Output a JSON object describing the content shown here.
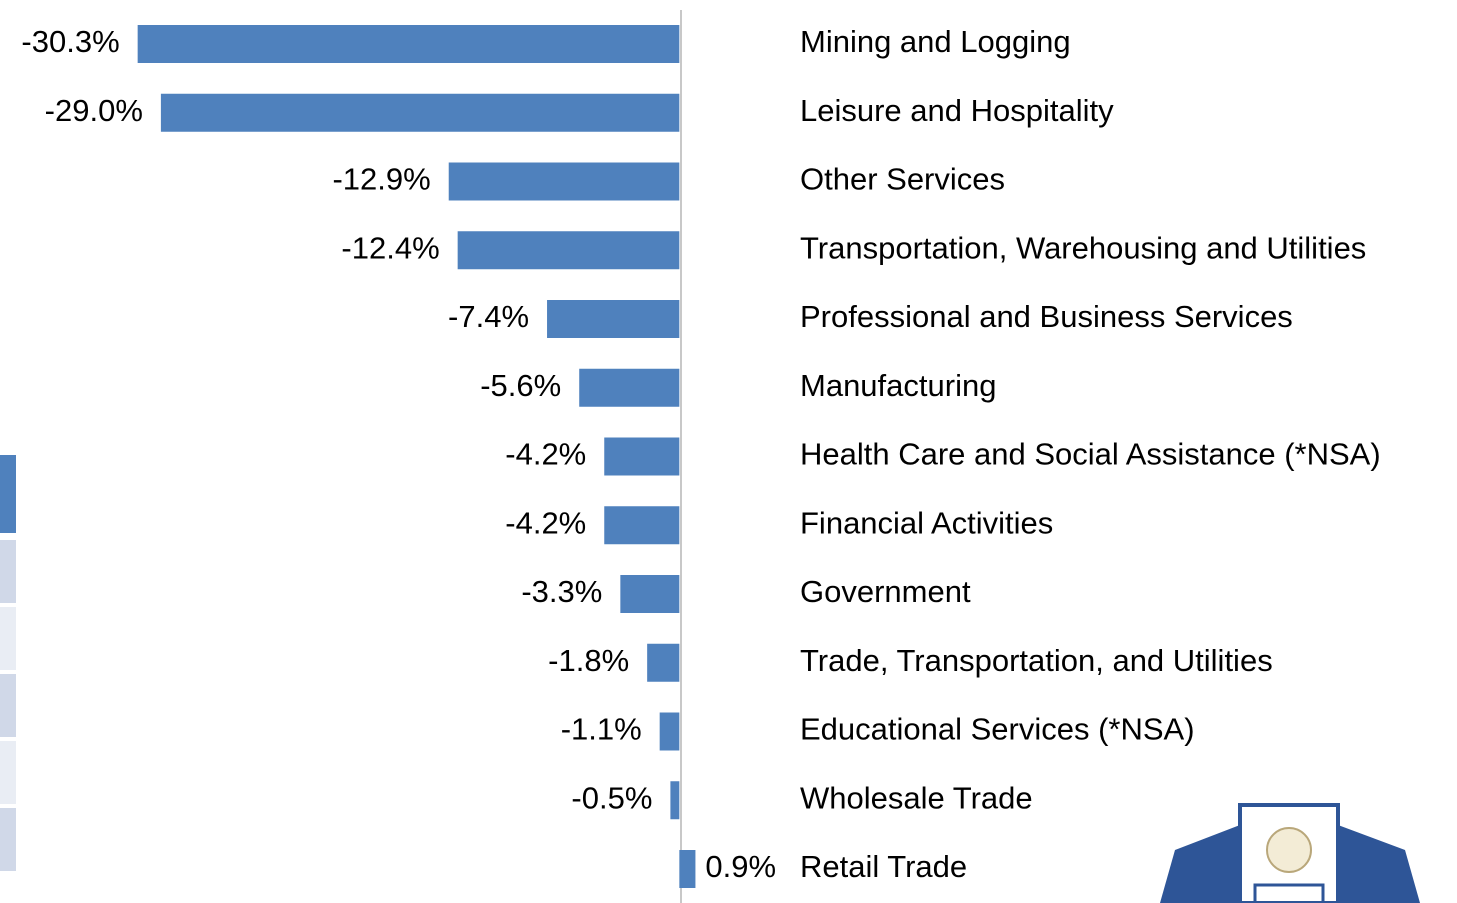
{
  "chart_data": {
    "type": "hbar",
    "categories": [
      "Mining and Logging",
      "Leisure and Hospitality",
      "Other Services",
      "Transportation, Warehousing and Utilities",
      "Professional and Business Services",
      "Manufacturing",
      "Health Care and Social Assistance (*NSA)",
      "Financial Activities",
      "Government",
      "Trade, Transportation, and Utilities",
      "Educational Services (*NSA)",
      "Wholesale Trade",
      "Retail Trade"
    ],
    "values": [
      -30.3,
      -29.0,
      -12.9,
      -12.4,
      -7.4,
      -5.6,
      -4.2,
      -4.2,
      -3.3,
      -1.8,
      -1.1,
      -0.5,
      0.9
    ],
    "value_labels": [
      "-30.3%",
      "-29.0%",
      "-12.9%",
      "-12.4%",
      "-7.4%",
      "-5.6%",
      "-4.2%",
      "-4.2%",
      "-3.3%",
      "-1.8%",
      "-1.1%",
      "-0.5%",
      "0.9%"
    ],
    "color": "#4f81bd",
    "xlim": [
      -38,
      43.5
    ]
  }
}
